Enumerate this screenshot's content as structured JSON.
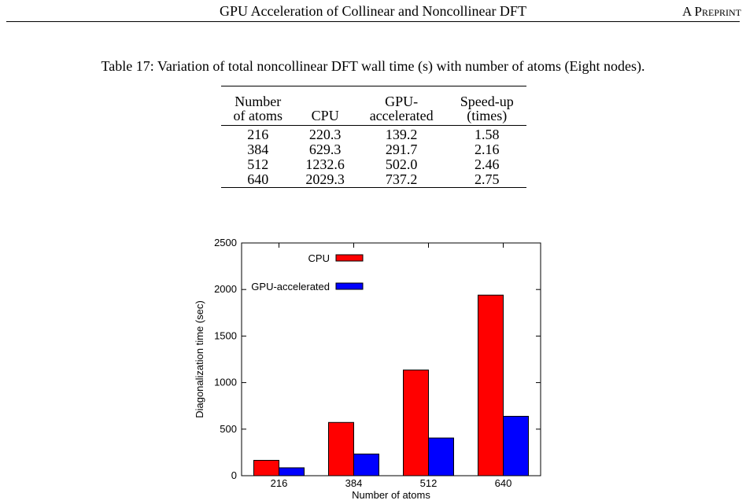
{
  "header": {
    "title": "GPU Acceleration of Collinear and Noncollinear DFT",
    "tag": "A Preprint"
  },
  "table": {
    "caption": "Table 17: Variation of total noncollinear DFT wall time (s) with number of atoms (Eight nodes).",
    "columns": [
      "Number\nof atoms",
      "CPU",
      "GPU-\naccelerated",
      "Speed-up\n(times)"
    ],
    "rows": [
      [
        "216",
        "220.3",
        "139.2",
        "1.58"
      ],
      [
        "384",
        "629.3",
        "291.7",
        "2.16"
      ],
      [
        "512",
        "1232.6",
        "502.0",
        "2.46"
      ],
      [
        "640",
        "2029.3",
        "737.2",
        "2.75"
      ]
    ]
  },
  "chart_data": {
    "type": "bar",
    "categories": [
      "216",
      "384",
      "512",
      "640"
    ],
    "series": [
      {
        "name": "CPU",
        "values": [
          165,
          572,
          1135,
          1940
        ],
        "color": "#ff0000"
      },
      {
        "name": "GPU-accelerated",
        "values": [
          85,
          233,
          405,
          638
        ],
        "color": "#0000ff"
      }
    ],
    "xlabel": "Number of atoms",
    "ylabel": "Diagonalization time (sec)",
    "ylim": [
      0,
      2500
    ],
    "yticks": [
      "0",
      "500",
      "1000",
      "1500",
      "2000",
      "2500"
    ],
    "grid": false,
    "legend_placement": "top-left"
  }
}
